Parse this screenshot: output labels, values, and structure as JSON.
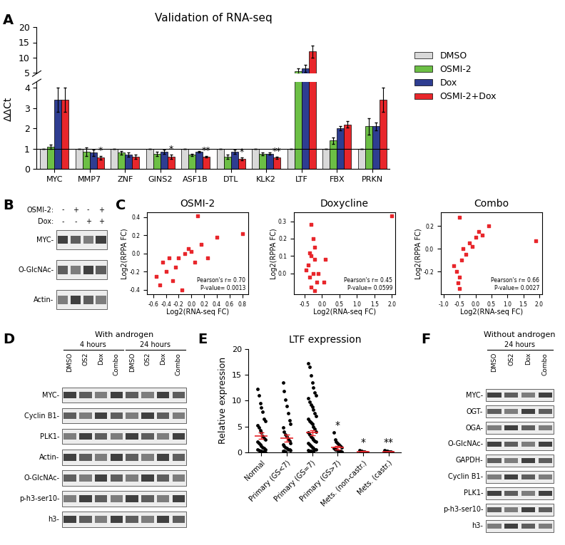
{
  "chart_data": [
    {
      "panel": "A",
      "type": "bar",
      "title": "Validation of RNA-seq",
      "y_label": "ΔΔCt",
      "categories": [
        "MYC",
        "MMP7",
        "ZNF",
        "GINS2",
        "ASF1B",
        "DTL",
        "KLK2",
        "LTF",
        "FBX",
        "PRKN"
      ],
      "series": [
        {
          "name": "DMSO",
          "color": "#d9d9d9",
          "values": [
            1,
            1,
            1,
            1,
            1,
            1,
            1,
            1,
            1,
            1
          ],
          "errors": [
            0,
            0,
            0,
            0,
            0,
            0,
            0,
            0,
            0,
            0
          ]
        },
        {
          "name": "OSMI-2",
          "color": "#6cbf45",
          "values": [
            1.1,
            0.85,
            0.8,
            0.75,
            0.7,
            0.6,
            0.75,
            5.5,
            1.4,
            2.1
          ],
          "errors": [
            0.1,
            0.2,
            0.1,
            0.1,
            0.05,
            0.1,
            0.08,
            1.0,
            0.15,
            0.4
          ]
        },
        {
          "name": "Dox",
          "color": "#2e3d91",
          "values": [
            3.4,
            0.8,
            0.7,
            0.85,
            0.85,
            0.85,
            0.75,
            6.5,
            2.0,
            2.1
          ],
          "errors": [
            0.6,
            0.15,
            0.1,
            0.1,
            0.05,
            0.1,
            0.05,
            1.2,
            0.1,
            0.2
          ]
        },
        {
          "name": "OSMI-2+Dox",
          "color": "#e8262b",
          "values": [
            3.4,
            0.55,
            0.6,
            0.6,
            0.6,
            0.5,
            0.55,
            12,
            2.2,
            3.4
          ],
          "errors": [
            0.6,
            0.1,
            0.1,
            0.1,
            0.05,
            0.08,
            0.05,
            2.0,
            0.15,
            0.6
          ]
        }
      ],
      "annotations": [
        {
          "category": "MMP7",
          "series": "OSMI-2+Dox",
          "text": "*"
        },
        {
          "category": "GINS2",
          "series": "OSMI-2+Dox",
          "text": "*"
        },
        {
          "category": "ASF1B",
          "series": "OSMI-2+Dox",
          "text": "**"
        },
        {
          "category": "DTL",
          "series": "OSMI-2+Dox",
          "text": "*"
        },
        {
          "category": "KLK2",
          "series": "OSMI-2+Dox",
          "text": "**"
        }
      ],
      "reference_line": 1,
      "ylim": [
        0,
        20
      ],
      "ybreak": [
        4.3,
        4.7
      ],
      "yticks": [
        0,
        1,
        2,
        3,
        4,
        5,
        10,
        15,
        20
      ],
      "legend": "center left"
    },
    {
      "panel": "C",
      "type": "scatter",
      "title": "OSMI-2",
      "x_label": "Log2(RNA-seq FC)",
      "y_label": "Log2(RPPA FC)",
      "color": "#e8262b",
      "marker": "s",
      "x": [
        -0.55,
        -0.5,
        -0.45,
        -0.4,
        -0.35,
        -0.3,
        -0.25,
        -0.2,
        -0.15,
        -0.1,
        -0.05,
        0.0,
        0.05,
        0.1,
        0.15,
        0.25,
        0.4,
        0.8
      ],
      "y": [
        -0.25,
        -0.35,
        -0.1,
        -0.2,
        -0.05,
        -0.3,
        -0.15,
        -0.05,
        -0.4,
        0.0,
        0.05,
        0.02,
        -0.1,
        0.41,
        0.1,
        -0.05,
        0.18,
        0.22
      ],
      "annotation": "Pearson's r= 0.70\nP-value= 0.0013",
      "xlim": [
        -0.7,
        0.9
      ],
      "xticks": [
        {
          "value": -0.6,
          "label": "-0.6"
        },
        {
          "value": -0.4,
          "label": "-0.4"
        },
        {
          "value": -0.2,
          "label": "-0.2"
        },
        {
          "value": 0,
          "label": "0.0"
        },
        0.2,
        0.4,
        0.6,
        0.8
      ],
      "ylim": [
        -0.45,
        0.45
      ],
      "yticks": [
        {
          "value": -0.4,
          "label": "-0.4"
        },
        {
          "value": -0.2,
          "label": "-0.2"
        },
        {
          "value": 0,
          "label": "0.0"
        },
        0.2,
        0.4
      ]
    },
    {
      "type": "scatter",
      "title": "Doxycline",
      "x_label": "Log2(RNA-seq FC)",
      "y_label": "Log2(RPPA FC)",
      "color": "#e8262b",
      "marker": "s",
      "x": [
        -0.3,
        -0.25,
        -0.2,
        -0.35,
        -0.3,
        -0.2,
        -0.4,
        -0.25,
        -0.1,
        -0.35,
        -0.15,
        -0.3,
        -0.2,
        0.05,
        0.1,
        -0.45,
        2.0
      ],
      "y": [
        0.28,
        0.2,
        0.15,
        0.12,
        0.1,
        0.08,
        0.05,
        0.0,
        0.0,
        -0.02,
        -0.05,
        -0.08,
        -0.1,
        -0.05,
        0.08,
        0.02,
        0.33
      ],
      "annotation": "Pearson's r= 0.45\nP-value= 0.0599",
      "xlim": [
        -0.8,
        2.1
      ],
      "xticks": [
        {
          "value": -0.5,
          "label": "-0.5"
        },
        {
          "value": 0,
          "label": "0.0"
        },
        0.5,
        1.0,
        1.5,
        2.0
      ],
      "ylim": [
        -0.12,
        0.35
      ],
      "yticks": [
        {
          "value": 0,
          "label": "0.0"
        },
        0.1,
        0.2,
        0.3
      ]
    },
    {
      "type": "scatter",
      "title": "Combo",
      "x_label": "Log2(RNA-seq FC)",
      "y_label": "Log2(RPPA FC)",
      "color": "#e8262b",
      "marker": "s",
      "x": [
        -0.5,
        -0.6,
        -0.7,
        -0.55,
        -0.5,
        -0.45,
        -0.4,
        -0.3,
        -0.2,
        -0.1,
        0.0,
        0.1,
        0.2,
        0.4,
        -0.5,
        1.9
      ],
      "y": [
        0.28,
        -0.2,
        -0.15,
        -0.3,
        -0.25,
        -0.1,
        0.0,
        -0.05,
        0.05,
        0.02,
        0.1,
        0.15,
        0.12,
        0.2,
        -0.35,
        0.07
      ],
      "annotation": "Pearson's r= 0.66\nP-value= 0.0027",
      "xlim": [
        -1.1,
        2.1
      ],
      "xticks": [
        {
          "value": -1.0,
          "label": "-1.0"
        },
        {
          "value": -0.5,
          "label": "-0.5"
        },
        {
          "value": 0,
          "label": "0.0"
        },
        0.5,
        1.0,
        1.5,
        2.0
      ],
      "ylim": [
        -0.4,
        0.32
      ],
      "yticks": [
        {
          "value": -0.2,
          "label": "-0.2"
        },
        {
          "value": 0,
          "label": "0.0"
        },
        0.2
      ]
    },
    {
      "panel": "E",
      "type": "scatter",
      "title": "LTF expression",
      "y_label": "Relative expression",
      "categories": [
        "Normal",
        "Primary (GS<7)",
        "Primary (GS=7)",
        "Primary (GS>7)",
        "Mets. (non-castr.)",
        "Mets. (castr.)"
      ],
      "values": [
        [
          12.2,
          11,
          9.5,
          8.6,
          7.8,
          6.5,
          6,
          5.2,
          4.8,
          4.3,
          3.8,
          3.2,
          2.8,
          2.5,
          2,
          1.8,
          1.5,
          1.2,
          1,
          0.8,
          0.6,
          0.5,
          0.4,
          0.3,
          0.2,
          0.1,
          0.1,
          0.05
        ],
        [
          13.5,
          11.8,
          10.2,
          9,
          7.5,
          6.2,
          5.5,
          4.8,
          4,
          3.5,
          3,
          2.6,
          2.2,
          1.8,
          1.5,
          1.2,
          1,
          0.8,
          0.6,
          0.5,
          0.4,
          0.3,
          0.2,
          0.1
        ],
        [
          17.2,
          16.5,
          14.8,
          13.5,
          12.5,
          11.5,
          11,
          10.5,
          9.8,
          9.2,
          8.8,
          8.2,
          7.5,
          7,
          6.5,
          6,
          5.8,
          5.5,
          5,
          4.5,
          4,
          3.8,
          3.5,
          3,
          2.8,
          2.5,
          2.2,
          2,
          1.8,
          1.5,
          1.2,
          1,
          0.8,
          0.6,
          0.5,
          0.4,
          0.3,
          0.2,
          0.1,
          0.1
        ],
        [
          3.8,
          2.5,
          2,
          1.8,
          1.5,
          1.2,
          1,
          0.8,
          0.6,
          0.5,
          0.4,
          0.3,
          0.2,
          0.1
        ],
        [
          0.4,
          0.3,
          0.2,
          0.1,
          0.1,
          0.05,
          0.05
        ],
        [
          0.4,
          0.3,
          0.2,
          0.15,
          0.1,
          0.1,
          0.05,
          0.05,
          0.02,
          0.02
        ]
      ],
      "means": [
        3.2,
        2.8,
        3.8,
        0.9,
        0.15,
        0.1
      ],
      "errors": [
        0.6,
        0.7,
        0.5,
        0.3,
        0.05,
        0.05
      ],
      "significance": [
        null,
        null,
        null,
        "*",
        "*",
        "**"
      ],
      "color": "#000000",
      "marker": "o",
      "ylim": [
        0,
        20
      ],
      "yticks": [
        0,
        5,
        10,
        15,
        20
      ]
    }
  ],
  "blots": [
    {
      "panel": "B",
      "conditions": [
        {
          "name": "OSMI-2:",
          "marks": [
            "-",
            "+",
            "-",
            "+"
          ]
        },
        {
          "name": "Dox:",
          "marks": [
            "-",
            "-",
            "+",
            "+"
          ]
        }
      ],
      "bands": [
        "MYC-",
        "O-GlcNAc-",
        "Actin-"
      ]
    },
    {
      "panel": "D",
      "title": "With androgen",
      "groups": [
        {
          "label": "4 hours",
          "lanes": [
            "DMSO",
            "OS2",
            "Dox",
            "Combo"
          ]
        },
        {
          "label": "24 hours",
          "lanes": [
            "DMSO",
            "OS2",
            "Dox",
            "Combo"
          ]
        }
      ],
      "bands": [
        "MYC-",
        "Cyclin B1-",
        "PLK1-",
        "Actin-",
        "O-GlcNAc-",
        "p-h3-ser10-",
        "h3-"
      ]
    },
    {
      "panel": "F",
      "title": "Without androgen",
      "groups": [
        {
          "label": "24 hours",
          "lanes": [
            "DMSO",
            "OS2",
            "Dox",
            "Combo"
          ]
        }
      ],
      "bands": [
        "MYC-",
        "OGT-",
        "OGA-",
        "O-GlcNAc-",
        "GAPDH-",
        "Cyclin B1-",
        "PLK1-",
        "p-h3-ser10-",
        "h3-"
      ]
    }
  ]
}
